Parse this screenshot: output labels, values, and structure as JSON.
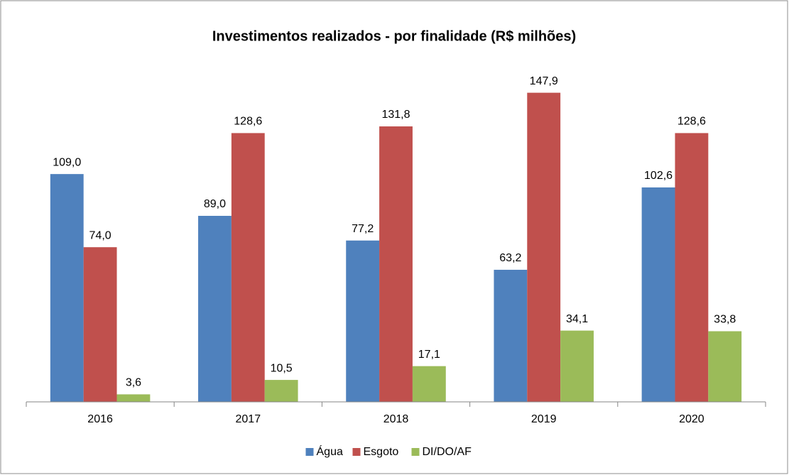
{
  "chart_data": {
    "type": "bar",
    "title": "Investimentos realizados - por finalidade (R$ milhões)",
    "categories": [
      "2016",
      "2017",
      "2018",
      "2019",
      "2020"
    ],
    "series": [
      {
        "name": "Água",
        "color": "#4f81bd",
        "values": [
          109.0,
          89.0,
          77.2,
          63.2,
          102.6
        ],
        "value_labels": [
          "109,0",
          "89,0",
          "77,2",
          "63,2",
          "102,6"
        ]
      },
      {
        "name": "Esgoto",
        "color": "#c0504d",
        "values": [
          74.0,
          128.6,
          131.8,
          147.9,
          128.6
        ],
        "value_labels": [
          "74,0",
          "128,6",
          "131,8",
          "147,9",
          "128,6"
        ]
      },
      {
        "name": "DI/DO/AF",
        "color": "#9bbb59",
        "values": [
          3.6,
          10.5,
          17.1,
          34.1,
          33.8
        ],
        "value_labels": [
          "3,6",
          "10,5",
          "17,1",
          "34,1",
          "33,8"
        ]
      }
    ],
    "ylim": [
      0,
      160
    ],
    "legend": "bottom"
  }
}
